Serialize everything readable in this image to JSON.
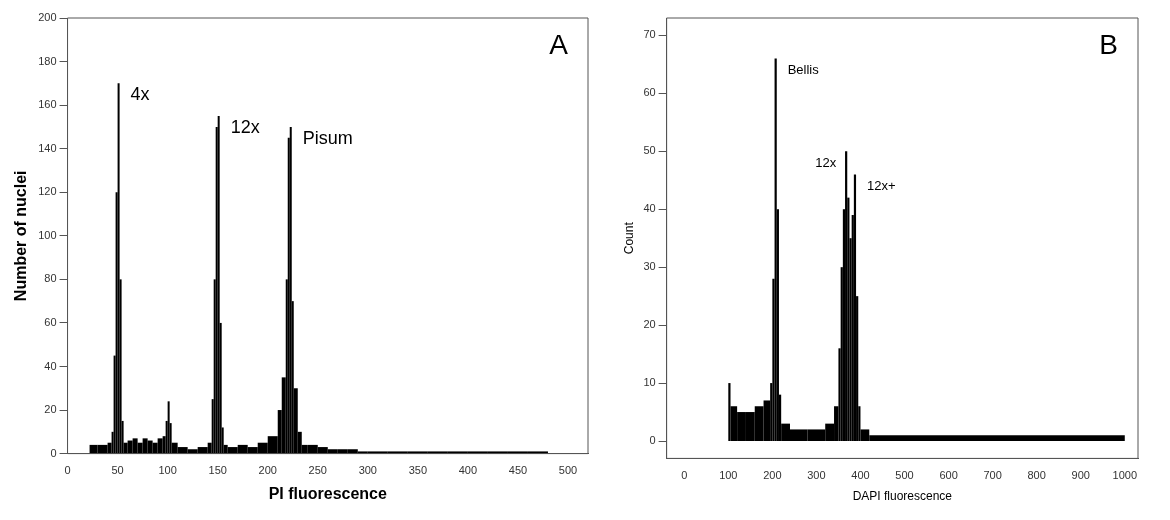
{
  "chart_data": [
    {
      "type": "histogram",
      "xlabel": "PI fluorescence",
      "ylabel": "Number of nuclei",
      "color": "#000000",
      "bins": [
        22,
        30,
        40,
        44,
        46,
        48,
        50,
        52,
        54,
        56,
        60,
        65,
        70,
        75,
        80,
        85,
        90,
        95,
        98,
        100,
        102,
        104,
        110,
        120,
        130,
        140,
        144,
        146,
        148,
        150,
        152,
        154,
        156,
        160,
        170,
        180,
        190,
        200,
        210,
        214,
        218,
        220,
        222,
        224,
        226,
        230,
        234,
        240,
        250,
        260,
        270,
        280,
        290,
        300,
        320,
        340,
        360,
        380,
        400,
        420,
        440,
        460,
        480
      ],
      "values": [
        4,
        4,
        5,
        10,
        45,
        120,
        170,
        80,
        15,
        5,
        6,
        7,
        5,
        7,
        6,
        5,
        7,
        8,
        15,
        24,
        14,
        5,
        3,
        2,
        3,
        5,
        25,
        80,
        150,
        155,
        60,
        12,
        4,
        3,
        4,
        3,
        5,
        8,
        20,
        35,
        80,
        145,
        150,
        70,
        30,
        10,
        4,
        4,
        3,
        2,
        2,
        2,
        1,
        1,
        1,
        1,
        1,
        1,
        1,
        1,
        1,
        1
      ],
      "xlim": [
        0,
        520
      ],
      "xticks": [
        0,
        50,
        100,
        150,
        200,
        250,
        300,
        350,
        400,
        450,
        500
      ],
      "ylim": [
        0,
        200
      ],
      "yticks": [
        0,
        20,
        40,
        60,
        80,
        100,
        120,
        140,
        160,
        180,
        200
      ],
      "grid": false,
      "annotations": [
        {
          "text": "4x",
          "x": 51,
          "y": 170
        },
        {
          "text": "12x",
          "x": 151,
          "y": 155
        },
        {
          "text": "Pisum",
          "x": 223,
          "y": 150
        },
        "A"
      ]
    },
    {
      "type": "histogram",
      "xlabel": "DAPI fluorescence",
      "ylabel": "Count",
      "color": "#000000",
      "bins": [
        100,
        105,
        120,
        140,
        160,
        180,
        195,
        200,
        205,
        210,
        215,
        220,
        240,
        280,
        320,
        340,
        350,
        355,
        360,
        365,
        370,
        375,
        380,
        385,
        390,
        395,
        400,
        420,
        1000
      ],
      "values": [
        10,
        6,
        5,
        5,
        6,
        7,
        10,
        28,
        66,
        40,
        8,
        3,
        2,
        2,
        3,
        6,
        16,
        30,
        40,
        50,
        42,
        35,
        39,
        46,
        25,
        6,
        2,
        1
      ],
      "xlim": [
        -40,
        1030
      ],
      "xticks": [
        0,
        100,
        200,
        300,
        400,
        500,
        600,
        700,
        800,
        900,
        1000
      ],
      "ylim": [
        -3,
        73
      ],
      "yticks": [
        0,
        10,
        20,
        30,
        40,
        50,
        60,
        70
      ],
      "grid": false,
      "annotations": [
        {
          "text": "Bellis",
          "x": 207.5,
          "y": 66
        },
        {
          "text": "12x",
          "x": 367.5,
          "y": 50
        },
        {
          "text": "12x+",
          "x": 387.5,
          "y": 46
        },
        "B"
      ]
    }
  ]
}
